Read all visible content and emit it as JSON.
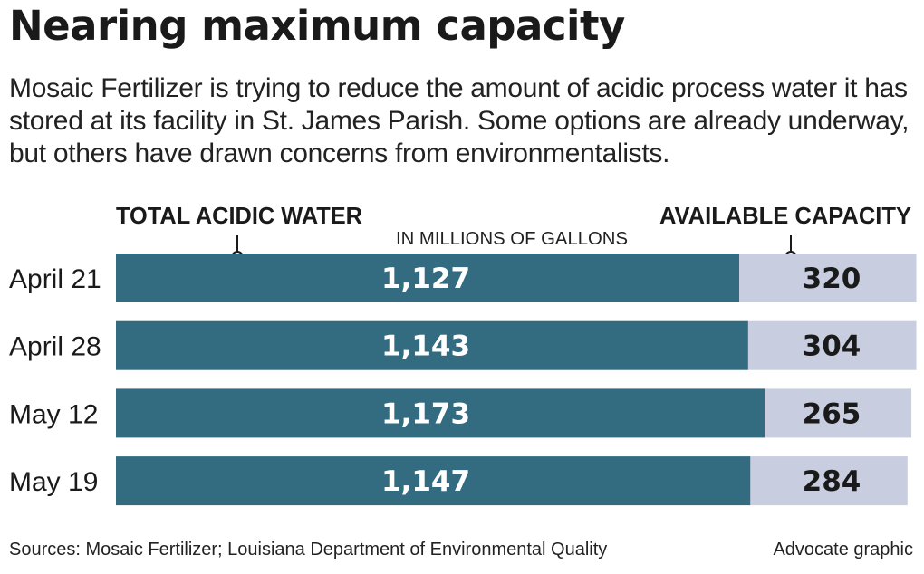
{
  "title": "Nearing maximum capacity",
  "subtitle": "Mosaic Fertilizer is trying to reduce the amount of acidic process water it has stored at its facility in St. James Parish. Some options are already underway, but others have drawn concerns from environmentalists.",
  "footer": {
    "sources": "Sources: Mosaic Fertilizer; Louisiana Department of Environmental Quality",
    "credit": "Advocate graphic"
  },
  "colors": {
    "total": "#336b80",
    "available": "#c8cddf",
    "total_label": "#ffffff",
    "available_label": "#1a1a1a"
  },
  "chart_data": {
    "type": "bar",
    "orientation": "horizontal",
    "stacked": true,
    "title": "Nearing maximum capacity",
    "units": "IN MILLIONS OF GALLONS",
    "categories": [
      "April 21",
      "April 28",
      "May 12",
      "May 19"
    ],
    "series": [
      {
        "name": "TOTAL ACIDIC WATER",
        "values": [
          1127,
          1143,
          1173,
          1147
        ],
        "labels": [
          "1,127",
          "1,143",
          "1,173",
          "1,147"
        ]
      },
      {
        "name": "AVAILABLE CAPACITY",
        "values": [
          320,
          304,
          265,
          284
        ],
        "labels": [
          "320",
          "304",
          "265",
          "284"
        ]
      }
    ],
    "grid": false,
    "legend": "top"
  }
}
